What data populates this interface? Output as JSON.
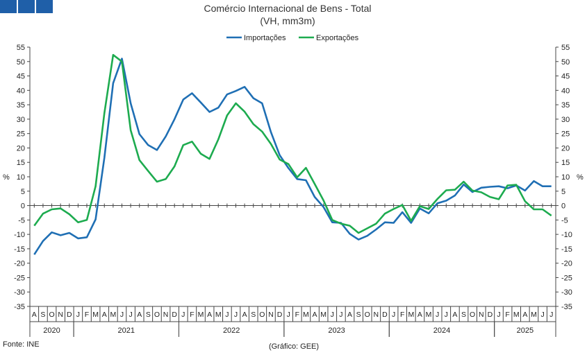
{
  "header": {
    "logo_icon": "ine-logo-icon"
  },
  "chart_data": {
    "type": "line",
    "title": "Comércio Internacional de Bens - Total",
    "subtitle": "(VH, mm3m)",
    "ylabel": "%",
    "ylim": [
      -35,
      55
    ],
    "ytick_step": 5,
    "grid": false,
    "legend": "top-center",
    "x": [
      "Ago 2020",
      "Set 2020",
      "Out 2020",
      "Nov 2020",
      "Dez 2020",
      "Jan 2021",
      "Fev 2021",
      "Mar 2021",
      "Abr 2021",
      "Mai 2021",
      "Jun 2021",
      "Jul 2021",
      "Ago 2021",
      "Set 2021",
      "Out 2021",
      "Nov 2021",
      "Dez 2021",
      "Jan 2022",
      "Fev 2022",
      "Mar 2022",
      "Abr 2022",
      "Mai 2022",
      "Jun 2022",
      "Jul 2022",
      "Ago 2022",
      "Set 2022",
      "Out 2022",
      "Nov 2022",
      "Dez 2022",
      "Jan 2023",
      "Fev 2023",
      "Mar 2023",
      "Abr 2023",
      "Mai 2023",
      "Jun 2023",
      "Jul 2023",
      "Ago 2023",
      "Set 2023",
      "Out 2023",
      "Nov 2023",
      "Dez 2023",
      "Jan 2024",
      "Fev 2024",
      "Mar 2024",
      "Abr 2024",
      "Mai 2024",
      "Jun 2024",
      "Jul 2024",
      "Ago 2024",
      "Set 2024",
      "Out 2024",
      "Nov 2024",
      "Dez 2024",
      "Jan 2025",
      "Fev 2025",
      "Mar 2025",
      "Abr 2025",
      "Mai 2025",
      "Jun 2025",
      "Jul 2025"
    ],
    "month_labels": [
      "A",
      "S",
      "O",
      "N",
      "D",
      "J",
      "F",
      "M",
      "A",
      "M",
      "J",
      "J",
      "A",
      "S",
      "O",
      "N",
      "D",
      "J",
      "F",
      "M",
      "A",
      "M",
      "J",
      "J",
      "A",
      "S",
      "O",
      "N",
      "D",
      "J",
      "F",
      "M",
      "A",
      "M",
      "J",
      "J",
      "A",
      "S",
      "O",
      "N",
      "D",
      "J",
      "F",
      "M",
      "A",
      "M",
      "J",
      "J",
      "A",
      "S",
      "O",
      "N",
      "D",
      "J",
      "F",
      "M",
      "A",
      "M",
      "J",
      "J"
    ],
    "years": [
      {
        "label": "2020",
        "start": 0,
        "count": 5
      },
      {
        "label": "2021",
        "start": 5,
        "count": 12
      },
      {
        "label": "2022",
        "start": 17,
        "count": 12
      },
      {
        "label": "2023",
        "start": 29,
        "count": 12
      },
      {
        "label": "2024",
        "start": 41,
        "count": 12
      },
      {
        "label": "2025",
        "start": 53,
        "count": 7
      }
    ],
    "series": [
      {
        "name": "Importações",
        "color": "#1f6fb4",
        "values": [
          -17,
          -12.3,
          -9.3,
          -10.3,
          -9.5,
          -11.4,
          -11,
          -4.8,
          16.5,
          42.5,
          51,
          35.5,
          24.8,
          21,
          19.3,
          24,
          30,
          36.8,
          39,
          35.8,
          32.5,
          34,
          38.6,
          39.8,
          41.2,
          37.3,
          35.5,
          25.5,
          17.5,
          13,
          9.2,
          8.8,
          3,
          -0.5,
          -5.8,
          -6,
          -9.8,
          -11.8,
          -10.5,
          -8.3,
          -5.8,
          -6,
          -2.3,
          -6,
          -1,
          -2.7,
          0.8,
          1.7,
          3.5,
          7.3,
          4.7,
          6.2,
          6.5,
          6.7,
          6,
          7,
          5.2,
          8.5,
          6.7,
          6.7
        ]
      },
      {
        "name": "Exportações",
        "color": "#1dab4f",
        "values": [
          -7,
          -2.8,
          -1.3,
          -1,
          -3,
          -5.8,
          -5,
          6.7,
          32,
          52.3,
          50,
          26.2,
          15.8,
          12,
          8.3,
          9.2,
          13.6,
          21,
          22.2,
          18,
          16.2,
          23,
          31.3,
          35.5,
          32.6,
          28.3,
          25.7,
          21.4,
          16,
          14.4,
          9.8,
          13.1,
          7.5,
          1.8,
          -5,
          -6.3,
          -7,
          -9.5,
          -7.9,
          -6.3,
          -2.8,
          -1.2,
          0.2,
          -5.3,
          -0.2,
          -1.2,
          2.3,
          5.3,
          5.5,
          8.3,
          5.2,
          4.6,
          3,
          2.2,
          7,
          7.2,
          1.5,
          -1.3,
          -1.3,
          -3.5
        ]
      }
    ]
  },
  "footer": {
    "source": "Fonte: INE",
    "credit": "(Gráfico: GEE)"
  }
}
